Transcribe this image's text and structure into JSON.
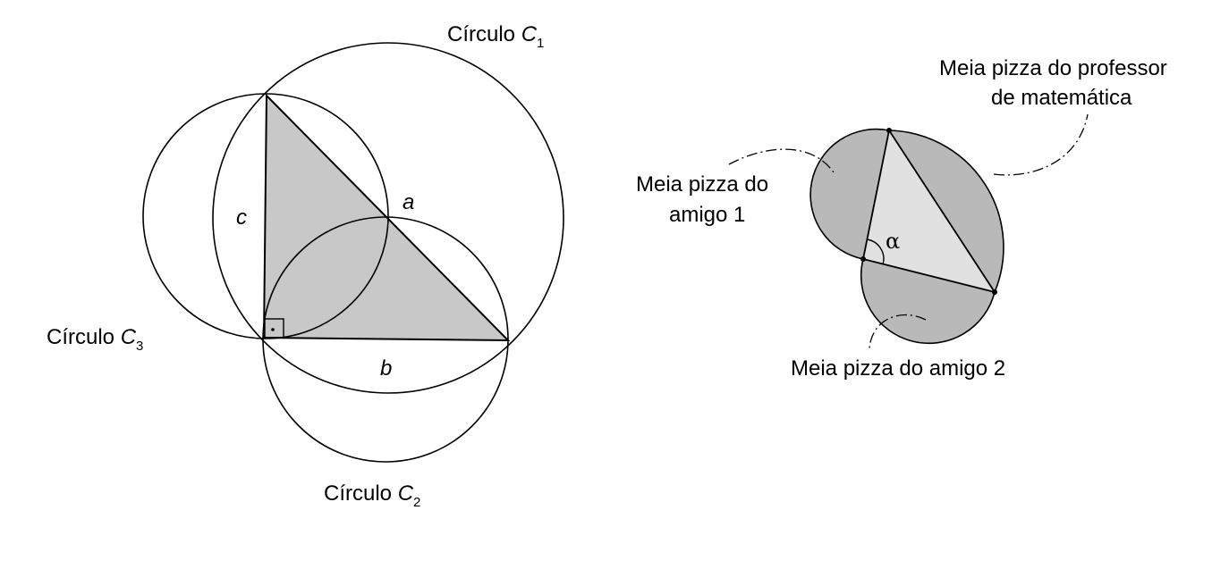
{
  "left_figure": {
    "circle_c1": {
      "prefix": "Círculo ",
      "letter": "C",
      "index": "1"
    },
    "circle_c2": {
      "prefix": "Círculo ",
      "letter": "C",
      "index": "2"
    },
    "circle_c3": {
      "prefix": "Círculo ",
      "letter": "C",
      "index": "3"
    },
    "side_a": "a",
    "side_b": "b",
    "side_c": "c",
    "colors": {
      "triangle_fill": "#c8c8c8",
      "stroke": "#000000"
    }
  },
  "right_figure": {
    "label_professor": [
      "Meia pizza do professor",
      "de matemática"
    ],
    "label_amigo1": [
      "Meia pizza do",
      "amigo 1"
    ],
    "label_amigo2": "Meia pizza do amigo 2",
    "angle_label": "α",
    "colors": {
      "pizza_fill": "#b9b9b9",
      "triangle_fill": "#e1e1e1",
      "stroke": "#000000"
    }
  }
}
